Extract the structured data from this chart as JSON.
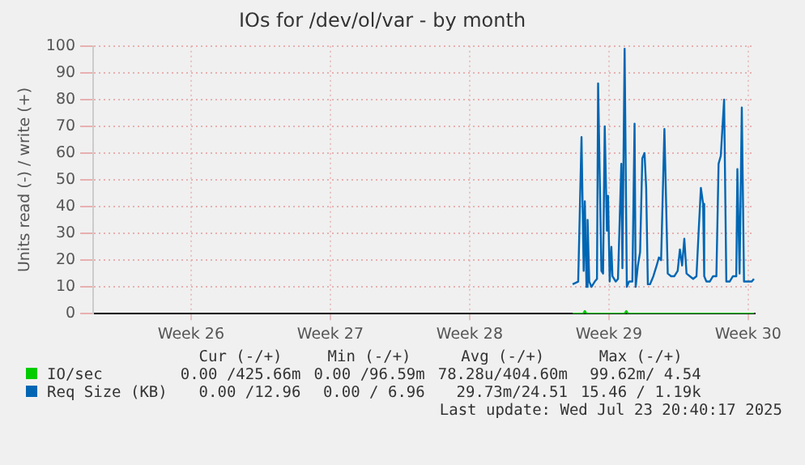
{
  "chart_data": {
    "type": "line",
    "title": "IOs for /dev/ol/var - by month",
    "ylabel": "Units read (-) / write (+)",
    "xlim": [
      "2025-06-18T02:00",
      "2025-07-21T08:00"
    ],
    "xticks": [
      {
        "value": "2025-06-23",
        "label": "Week 26"
      },
      {
        "value": "2025-06-30",
        "label": "Week 27"
      },
      {
        "value": "2025-07-07",
        "label": "Week 28"
      },
      {
        "value": "2025-07-14",
        "label": "Week 29"
      },
      {
        "value": "2025-07-21",
        "label": "Week 30"
      }
    ],
    "ylim": [
      0,
      100
    ],
    "yticks": [
      0,
      10,
      20,
      30,
      40,
      50,
      60,
      70,
      80,
      90,
      100
    ],
    "grid": true,
    "legend": "bottom",
    "marker": "none",
    "series": [
      {
        "name": "IO/sec",
        "color": "#00cc00",
        "x": [
          "2025-07-12T04:20",
          "2025-07-12T17:00",
          "2025-07-12T19:00",
          "2025-07-12T21:00",
          "2025-07-14T19:00",
          "2025-07-14T21:00",
          "2025-07-14T23:00",
          "2025-07-21T07:00"
        ],
        "values": [
          0,
          0,
          1,
          0,
          0,
          1,
          0,
          0
        ]
      },
      {
        "name": "Req Size (KB)",
        "color": "#0066b3",
        "x": [
          "2025-07-12T04:20",
          "2025-07-12T11:00",
          "2025-07-12T15:00",
          "2025-07-12T17:36",
          "2025-07-12T19:00",
          "2025-07-12T21:00",
          "2025-07-12T22:20",
          "2025-07-13T00:20",
          "2025-07-13T03:00",
          "2025-07-13T07:00",
          "2025-07-13T09:40",
          "2025-07-13T11:00",
          "2025-07-13T15:00",
          "2025-07-13T17:00",
          "2025-07-13T19:00",
          "2025-07-13T21:40",
          "2025-07-13T23:00",
          "2025-07-14T01:00",
          "2025-07-14T03:00",
          "2025-07-14T04:20",
          "2025-07-14T06:20",
          "2025-07-14T08:20",
          "2025-07-14T11:00",
          "2025-07-14T15:00",
          "2025-07-14T16:20",
          "2025-07-14T19:00",
          "2025-07-14T21:40",
          "2025-07-15T00:20",
          "2025-07-15T04:20",
          "2025-07-15T07:00",
          "2025-07-15T08:20",
          "2025-07-15T11:00",
          "2025-07-15T13:40",
          "2025-07-15T16:20",
          "2025-07-15T19:00",
          "2025-07-15T21:00",
          "2025-07-15T23:00",
          "2025-07-16T01:40",
          "2025-07-16T05:40",
          "2025-07-16T09:40",
          "2025-07-16T12:20",
          "2025-07-16T15:00",
          "2025-07-16T19:00",
          "2025-07-16T23:00",
          "2025-07-17T03:00",
          "2025-07-17T07:00",
          "2025-07-17T11:00",
          "2025-07-17T13:40",
          "2025-07-17T16:20",
          "2025-07-17T19:00",
          "2025-07-17T21:40",
          "2025-07-18T01:40",
          "2025-07-18T05:40",
          "2025-07-18T09:40",
          "2025-07-18T12:20",
          "2025-07-18T15:00",
          "2025-07-18T17:40",
          "2025-07-18T19:00",
          "2025-07-18T21:40",
          "2025-07-19T01:40",
          "2025-07-19T05:40",
          "2025-07-19T09:40",
          "2025-07-19T12:20",
          "2025-07-19T15:00",
          "2025-07-19T19:00",
          "2025-07-19T21:40",
          "2025-07-20T01:40",
          "2025-07-20T05:40",
          "2025-07-20T09:40",
          "2025-07-20T11:00",
          "2025-07-20T13:40",
          "2025-07-20T16:20",
          "2025-07-20T19:00",
          "2025-07-21T00:20",
          "2025-07-21T04:20",
          "2025-07-21T07:00"
        ],
        "values": [
          11,
          12,
          66,
          16,
          42,
          10,
          35,
          12,
          10,
          12,
          13,
          86,
          16,
          15,
          70,
          31,
          44,
          12,
          25,
          14,
          13,
          12,
          13,
          56,
          17,
          99,
          10,
          12,
          12,
          71,
          10,
          18,
          23,
          58,
          60,
          47,
          11,
          11,
          14,
          18,
          21,
          20,
          69,
          15,
          14,
          14,
          16,
          24,
          18,
          28,
          15,
          14,
          13,
          14,
          31,
          47,
          41,
          14,
          12,
          12,
          14,
          14,
          56,
          59,
          80,
          12,
          12,
          14,
          14,
          54,
          15,
          77,
          12,
          12,
          12,
          13
        ]
      }
    ],
    "annotations": [
      "Cur (-/+)",
      "Min (-/+)",
      "Avg (-/+)",
      "Max (-/+)",
      "0.00 /425.66m",
      "0.00 /96.59m",
      "78.28u/404.60m",
      "99.62m/ 4.54",
      "0.00 /12.96",
      "0.00 / 6.96",
      "29.73m/24.51",
      "15.46 / 1.19k",
      "Last update: Wed Jul 23 20:40:17 2025"
    ]
  }
}
